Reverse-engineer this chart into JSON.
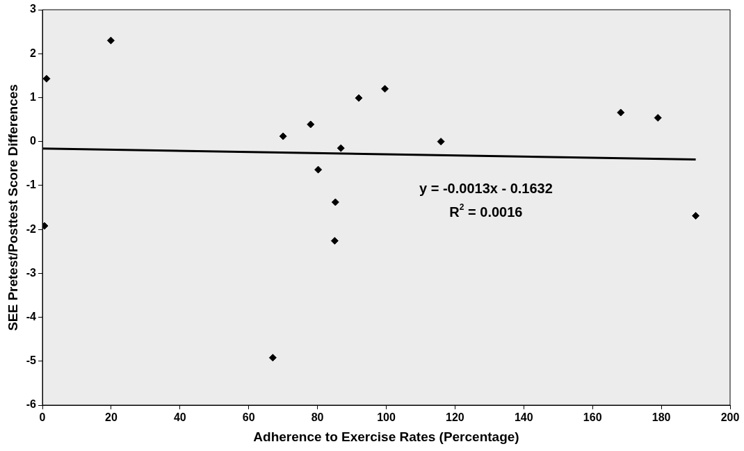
{
  "chart_data": {
    "type": "scatter",
    "xlabel": "Adherence to Exercise Rates (Percentage)",
    "ylabel": "SEE Pretest/Posttest Score Differences",
    "xlim": [
      0,
      200
    ],
    "xticks": [
      0,
      20,
      40,
      60,
      80,
      100,
      120,
      140,
      160,
      180,
      200
    ],
    "ylim": [
      -6,
      3
    ],
    "yticks": [
      -6,
      -5,
      -4,
      -3,
      -2,
      -1,
      0,
      1,
      2,
      3
    ],
    "grid": false,
    "legend": false,
    "marker": "diamond",
    "series": [
      {
        "type": "scatter",
        "color": "#000000",
        "x": [
          1.2,
          0.6,
          19.9,
          70,
          78,
          86.8,
          80.2,
          85.2,
          85,
          67,
          92,
          99.6,
          115.9,
          168.2,
          179,
          190
        ],
        "values": [
          1.43,
          -1.92,
          2.3,
          0.12,
          0.39,
          -0.15,
          -0.64,
          -1.38,
          -2.26,
          -4.92,
          0.99,
          1.2,
          0,
          0.66,
          0.54,
          -1.69
        ]
      },
      {
        "type": "line",
        "color": "#000000",
        "line_style": "solid",
        "marker": "none",
        "x": [
          0,
          190
        ],
        "values": [
          -0.16,
          -0.41
        ]
      }
    ],
    "annotations": [
      "y = -0.0013x - 0.1632",
      "R$^{2}$ = 0.0016"
    ]
  }
}
